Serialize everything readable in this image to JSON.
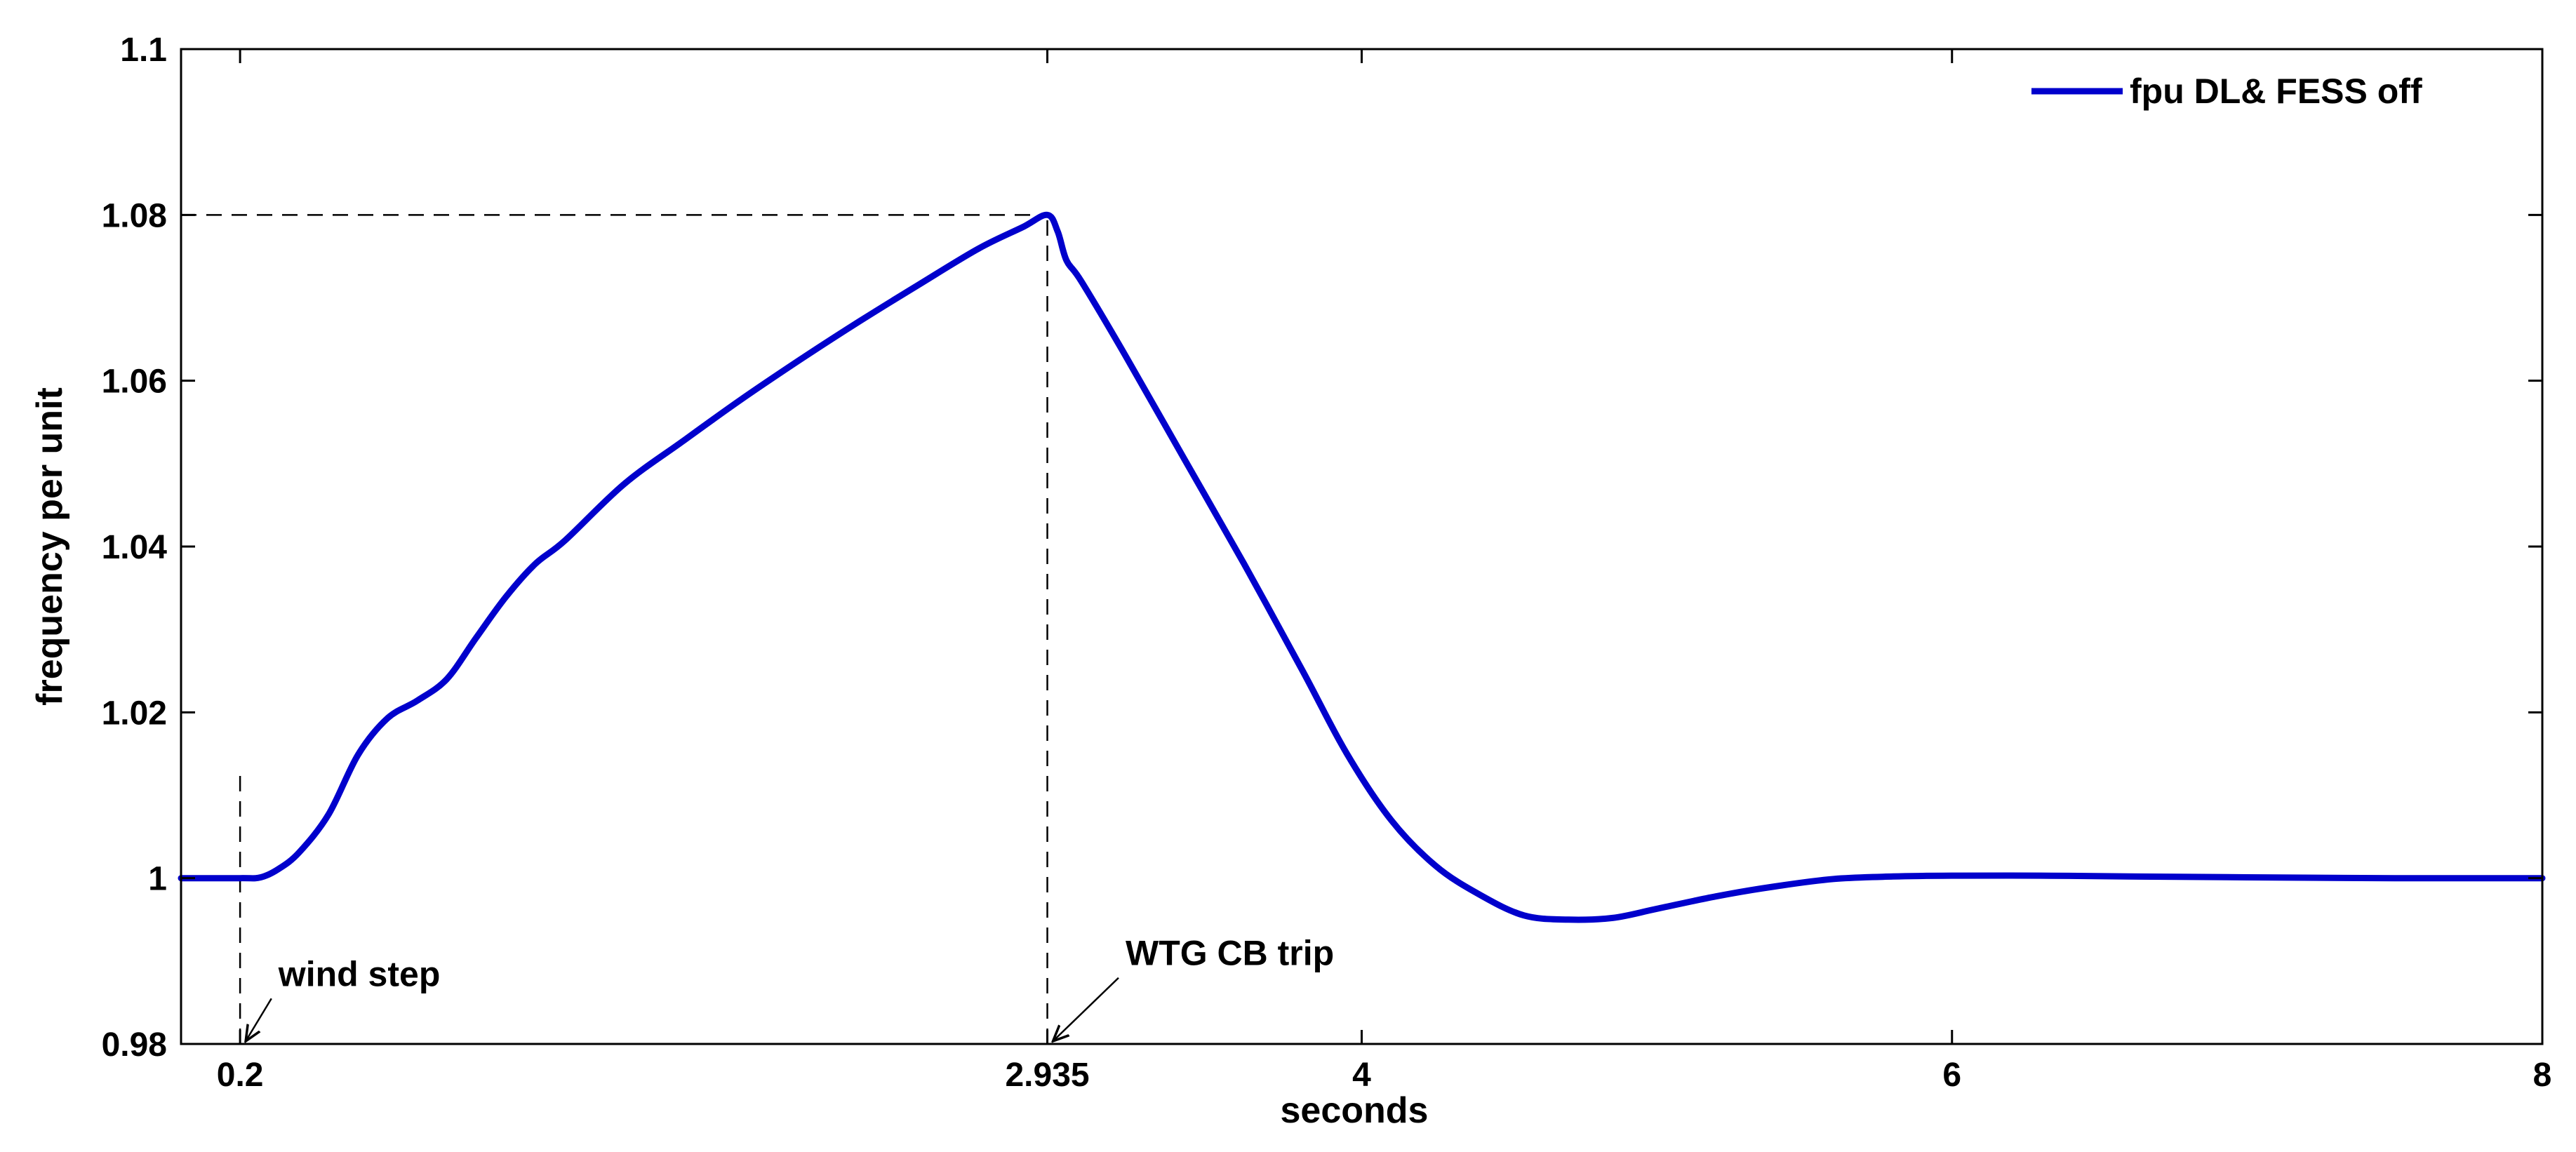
{
  "chart_data": {
    "type": "line",
    "title": "",
    "xlabel": "seconds",
    "ylabel": "frequency per unit",
    "xlim": [
      0,
      8
    ],
    "ylim": [
      0.98,
      1.1
    ],
    "xticks": [
      0.2,
      2.935,
      4,
      6,
      8
    ],
    "xtick_labels": [
      "0.2",
      "2.935",
      "4",
      "6",
      "8"
    ],
    "yticks": [
      0.98,
      1.0,
      1.02,
      1.04,
      1.06,
      1.08,
      1.1
    ],
    "ytick_labels": [
      "0.98",
      "1",
      "1.02",
      "1.04",
      "1.06",
      "1.08",
      "1.1"
    ],
    "grid": false,
    "legend_position": "top-right",
    "series": [
      {
        "name": "fpu DL& FESS off",
        "color": "#0000cc",
        "x": [
          0,
          0.2,
          0.27,
          0.33,
          0.4,
          0.5,
          0.6,
          0.7,
          0.8,
          0.9,
          1.0,
          1.1,
          1.2,
          1.3,
          1.5,
          1.7,
          1.9,
          2.1,
          2.3,
          2.5,
          2.7,
          2.85,
          2.935,
          2.97,
          3.0,
          3.05,
          3.2,
          3.4,
          3.6,
          3.8,
          3.95,
          4.1,
          4.25,
          4.4,
          4.55,
          4.7,
          4.85,
          5.0,
          5.2,
          5.4,
          5.6,
          5.8,
          6.0,
          6.3,
          6.6,
          7.0,
          7.5,
          8.0
        ],
        "y": [
          1.0,
          1.0,
          1.0001,
          1.0011,
          1.0031,
          1.0077,
          1.0149,
          1.0193,
          1.0214,
          1.024,
          1.029,
          1.0339,
          1.0379,
          1.0407,
          1.0475,
          1.0527,
          1.0578,
          1.0626,
          1.0672,
          1.0716,
          1.0759,
          1.0785,
          1.08,
          1.078,
          1.0745,
          1.072,
          1.063,
          1.0505,
          1.038,
          1.025,
          1.015,
          1.007,
          1.0015,
          0.998,
          0.9955,
          0.995,
          0.9952,
          0.9963,
          0.9978,
          0.999,
          0.9999,
          1.0002,
          1.0003,
          1.0003,
          1.0002,
          1.0001,
          1.0,
          1.0
        ]
      }
    ],
    "reference_lines": [
      {
        "type": "horizontal",
        "y": 1.08,
        "x_from": 0,
        "x_to": 2.935,
        "style": "dashed"
      },
      {
        "type": "vertical",
        "x": 2.935,
        "y_from": 0.98,
        "y_to": 1.08,
        "style": "dashed"
      },
      {
        "type": "vertical",
        "x": 0.2,
        "y_from": 0.98,
        "y_to": 1.0133,
        "style": "dashed"
      }
    ],
    "annotations": [
      {
        "text": "wind step",
        "point_x": 0.2,
        "point_y": 0.98,
        "text_x": 0.33,
        "text_y": 0.987
      },
      {
        "text": "WTG CB trip",
        "point_x": 2.935,
        "point_y": 0.98,
        "text_x": 3.2,
        "text_y": 0.9895
      }
    ]
  }
}
